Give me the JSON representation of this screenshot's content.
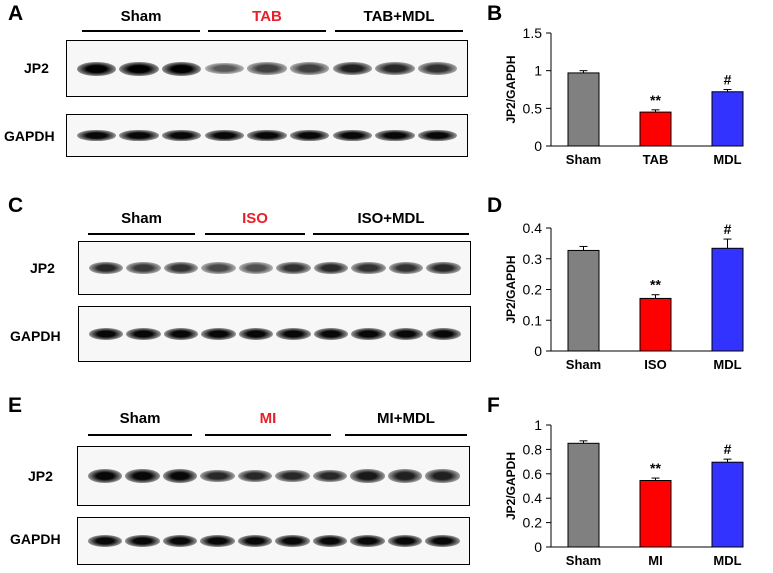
{
  "panels": [
    {
      "letter": "A",
      "groups": [
        {
          "label": "Sham",
          "color": "#000000"
        },
        {
          "label": "TAB",
          "color": "#e8202a"
        },
        {
          "label": "TAB+MDL",
          "color": "#000000"
        }
      ],
      "rows": [
        "JP2",
        "GAPDH"
      ],
      "lane_counts": [
        3,
        3,
        3
      ],
      "jp2_intensity": [
        1.0,
        1.0,
        1.0,
        0.45,
        0.6,
        0.6,
        0.8,
        0.75,
        0.7
      ]
    },
    {
      "letter": "C",
      "groups": [
        {
          "label": "Sham",
          "color": "#000000"
        },
        {
          "label": "ISO",
          "color": "#e8202a"
        },
        {
          "label": "ISO+MDL",
          "color": "#000000"
        }
      ],
      "rows": [
        "JP2",
        "GAPDH"
      ],
      "lane_counts": [
        3,
        3,
        4
      ],
      "jp2_intensity": [
        0.75,
        0.65,
        0.7,
        0.55,
        0.5,
        0.7,
        0.75,
        0.7,
        0.7,
        0.75
      ]
    },
    {
      "letter": "E",
      "groups": [
        {
          "label": "Sham",
          "color": "#000000"
        },
        {
          "label": "MI",
          "color": "#e8202a"
        },
        {
          "label": "MI+MDL",
          "color": "#000000"
        }
      ],
      "rows": [
        "JP2",
        "GAPDH"
      ],
      "lane_counts": [
        3,
        4,
        3
      ],
      "jp2_intensity": [
        0.95,
        0.95,
        0.95,
        0.75,
        0.75,
        0.75,
        0.75,
        0.85,
        0.8,
        0.8
      ]
    }
  ],
  "chart_data": [
    {
      "letter": "B",
      "type": "bar",
      "categories": [
        "Sham",
        "TAB",
        "MDL"
      ],
      "values": [
        0.97,
        0.45,
        0.72
      ],
      "errors": [
        0.03,
        0.03,
        0.03
      ],
      "colors": [
        "#808080",
        "#ff0000",
        "#3333ff"
      ],
      "annotations": [
        "",
        "**",
        "#"
      ],
      "ylabel": "JP2/GAPDH",
      "ylim": [
        0,
        1.5
      ],
      "yticks": [
        0,
        0.5,
        1,
        1.5
      ],
      "ytick_labels": [
        "0",
        "0.5",
        "1",
        "1.5"
      ]
    },
    {
      "letter": "D",
      "type": "bar",
      "categories": [
        "Sham",
        "ISO",
        "MDL"
      ],
      "values": [
        0.327,
        0.171,
        0.334
      ],
      "errors": [
        0.013,
        0.012,
        0.03
      ],
      "colors": [
        "#808080",
        "#ff0000",
        "#3333ff"
      ],
      "annotations": [
        "",
        "**",
        "#"
      ],
      "ylabel": "JP2/GAPDH",
      "ylim": [
        0,
        0.4
      ],
      "yticks": [
        0,
        0.1,
        0.2,
        0.3,
        0.4
      ],
      "ytick_labels": [
        "0",
        "0.1",
        "0.2",
        "0.3",
        "0.4"
      ]
    },
    {
      "letter": "F",
      "type": "bar",
      "categories": [
        "Sham",
        "MI",
        "MDL"
      ],
      "values": [
        0.85,
        0.545,
        0.695
      ],
      "errors": [
        0.02,
        0.02,
        0.025
      ],
      "colors": [
        "#808080",
        "#ff0000",
        "#3333ff"
      ],
      "annotations": [
        "",
        "**",
        "#"
      ],
      "ylabel": "JP2/GAPDH",
      "ylim": [
        0,
        1
      ],
      "yticks": [
        0,
        0.2,
        0.4,
        0.6,
        0.8,
        1
      ],
      "ytick_labels": [
        "0",
        "0.2",
        "0.4",
        "0.6",
        "0.8",
        "1"
      ]
    }
  ]
}
